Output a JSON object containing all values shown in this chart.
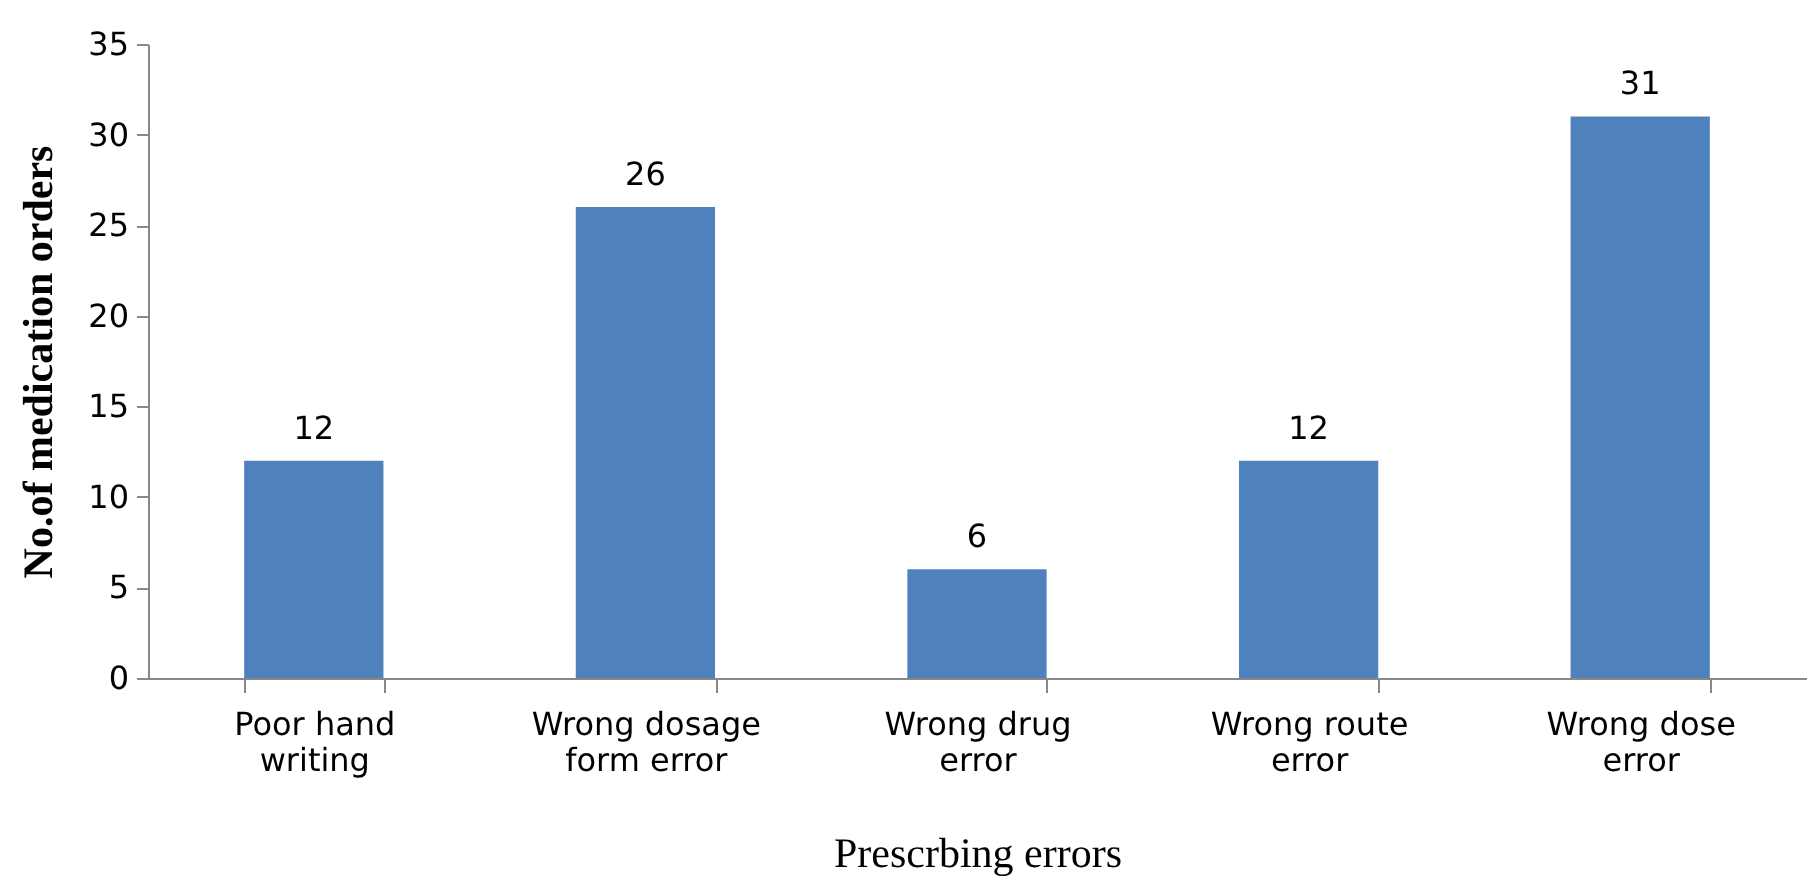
{
  "chart_data": {
    "type": "bar",
    "xlabel": "Prescrbing errors",
    "ylabel": "No.of medication orders",
    "categories": [
      "Poor hand writing",
      "Wrong dosage form error",
      "Wrong drug error",
      "Wrong route error",
      "Wrong dose error"
    ],
    "values": [
      12,
      26,
      6,
      12,
      31
    ],
    "color": "#4f81bd",
    "ylim": [
      0,
      35
    ],
    "yticks": [
      0,
      5,
      10,
      15,
      20,
      25,
      30,
      35
    ],
    "grid": false,
    "data_labels": true
  }
}
